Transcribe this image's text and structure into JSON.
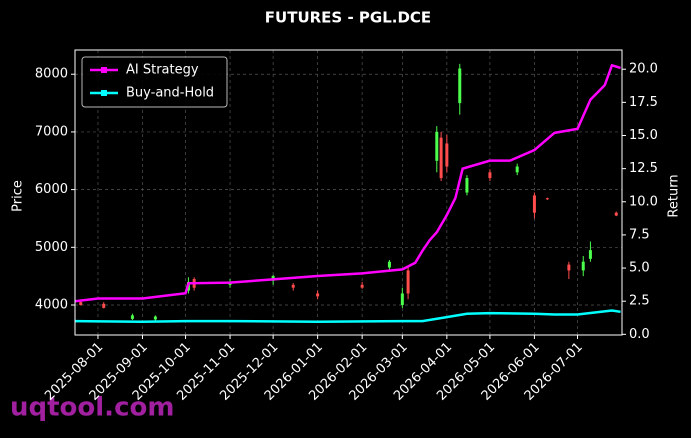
{
  "chart_data": {
    "type": "candlestick",
    "title": "FUTURES - PGL.DCE",
    "ylabel": "Price",
    "y2label": "Return",
    "watermark": "uqtool.com",
    "xlim": [
      "2025-07-16",
      "2026-08-01"
    ],
    "xticks": [
      "2025-08-01",
      "2025-09-01",
      "2025-10-01",
      "2025-11-01",
      "2025-12-01",
      "2026-01-01",
      "2026-02-01",
      "2026-03-01",
      "2026-04-01",
      "2026-05-01",
      "2026-06-01",
      "2026-07-01"
    ],
    "ylim": [
      3480,
      8420
    ],
    "yticks": [
      4000,
      5000,
      6000,
      7000,
      8000
    ],
    "y2lim": [
      -0.05,
      21.45
    ],
    "y2ticks": [
      {
        "value": 0,
        "label": "0.0"
      },
      2.5,
      {
        "value": 5,
        "label": "5.0"
      },
      7.5,
      {
        "value": 10,
        "label": "10.0"
      },
      12.5,
      {
        "value": 15,
        "label": "15.0"
      },
      17.5,
      {
        "value": 20,
        "label": "20.0"
      }
    ],
    "grid": true,
    "legend": "upper left",
    "up_color": "#4cff4c",
    "down_color": "#ff4c4c",
    "candles": {
      "x": [
        "2025-07-20",
        "2025-08-05",
        "2025-08-25",
        "2025-09-10",
        "2025-10-03",
        "2025-10-07",
        "2025-11-01",
        "2025-12-01",
        "2025-12-15",
        "2026-01-01",
        "2026-02-01",
        "2026-02-20",
        "2026-03-01",
        "2026-03-05",
        "2026-03-25",
        "2026-03-28",
        "2026-04-01",
        "2026-04-10",
        "2026-04-15",
        "2026-05-01",
        "2026-05-20",
        "2026-06-01",
        "2026-06-10",
        "2026-06-25",
        "2026-07-05",
        "2026-07-10",
        "2026-07-28"
      ],
      "open": [
        4050,
        4020,
        3760,
        3750,
        4250,
        4450,
        4350,
        4420,
        4350,
        4200,
        4350,
        4650,
        4000,
        4600,
        6500,
        6900,
        6800,
        7500,
        5950,
        6300,
        6300,
        5900,
        5850,
        4700,
        4600,
        4800,
        5600
      ],
      "high": [
        4080,
        4050,
        3850,
        3820,
        4480,
        4480,
        4450,
        4520,
        4380,
        4250,
        4400,
        4780,
        4300,
        4650,
        7100,
        7000,
        6950,
        8180,
        6250,
        6350,
        6450,
        5950,
        5860,
        4750,
        4850,
        5100,
        5620
      ],
      "low": [
        3990,
        3940,
        3740,
        3730,
        4200,
        4250,
        4300,
        4350,
        4250,
        4100,
        4280,
        4600,
        3950,
        4100,
        6300,
        6150,
        6300,
        7300,
        5900,
        6150,
        6250,
        5500,
        5820,
        4450,
        4500,
        4750,
        5540
      ],
      "close": [
        4000,
        3950,
        3820,
        3800,
        4400,
        4300,
        4400,
        4500,
        4300,
        4150,
        4300,
        4750,
        4200,
        4200,
        7000,
        6200,
        6400,
        8100,
        6200,
        6200,
        6400,
        5600,
        5840,
        4600,
        4750,
        4950,
        5550
      ]
    },
    "series": [
      {
        "name": "AI Strategy",
        "color": "#ff00ff",
        "axis": "y2",
        "x": [
          "2025-07-16",
          "2025-08-01",
          "2025-09-01",
          "2025-10-01",
          "2025-10-03",
          "2025-11-01",
          "2025-12-01",
          "2026-01-01",
          "2026-02-01",
          "2026-03-01",
          "2026-03-10",
          "2026-03-15",
          "2026-03-20",
          "2026-03-25",
          "2026-04-01",
          "2026-04-07",
          "2026-04-12",
          "2026-05-01",
          "2026-05-15",
          "2026-06-01",
          "2026-06-15",
          "2026-07-01",
          "2026-07-10",
          "2026-07-20",
          "2026-07-25",
          "2026-07-31"
        ],
        "values": [
          2.5,
          2.7,
          2.7,
          3.1,
          3.85,
          3.9,
          4.15,
          4.4,
          4.6,
          4.9,
          5.4,
          6.3,
          7.1,
          7.7,
          9.0,
          10.3,
          12.5,
          13.1,
          13.1,
          13.9,
          15.2,
          15.5,
          17.7,
          18.8,
          20.3,
          20.1
        ]
      },
      {
        "name": "Buy-and-Hold",
        "color": "#00ffff",
        "axis": "y2",
        "x": [
          "2025-07-16",
          "2025-09-01",
          "2025-10-01",
          "2025-11-01",
          "2026-01-01",
          "2026-03-01",
          "2026-03-15",
          "2026-04-01",
          "2026-04-15",
          "2026-05-01",
          "2026-06-01",
          "2026-06-15",
          "2026-07-01",
          "2026-07-25",
          "2026-07-31"
        ],
        "values": [
          1.0,
          0.95,
          1.0,
          1.0,
          0.95,
          1.0,
          1.0,
          1.3,
          1.55,
          1.6,
          1.55,
          1.5,
          1.5,
          1.8,
          1.7
        ]
      }
    ]
  }
}
